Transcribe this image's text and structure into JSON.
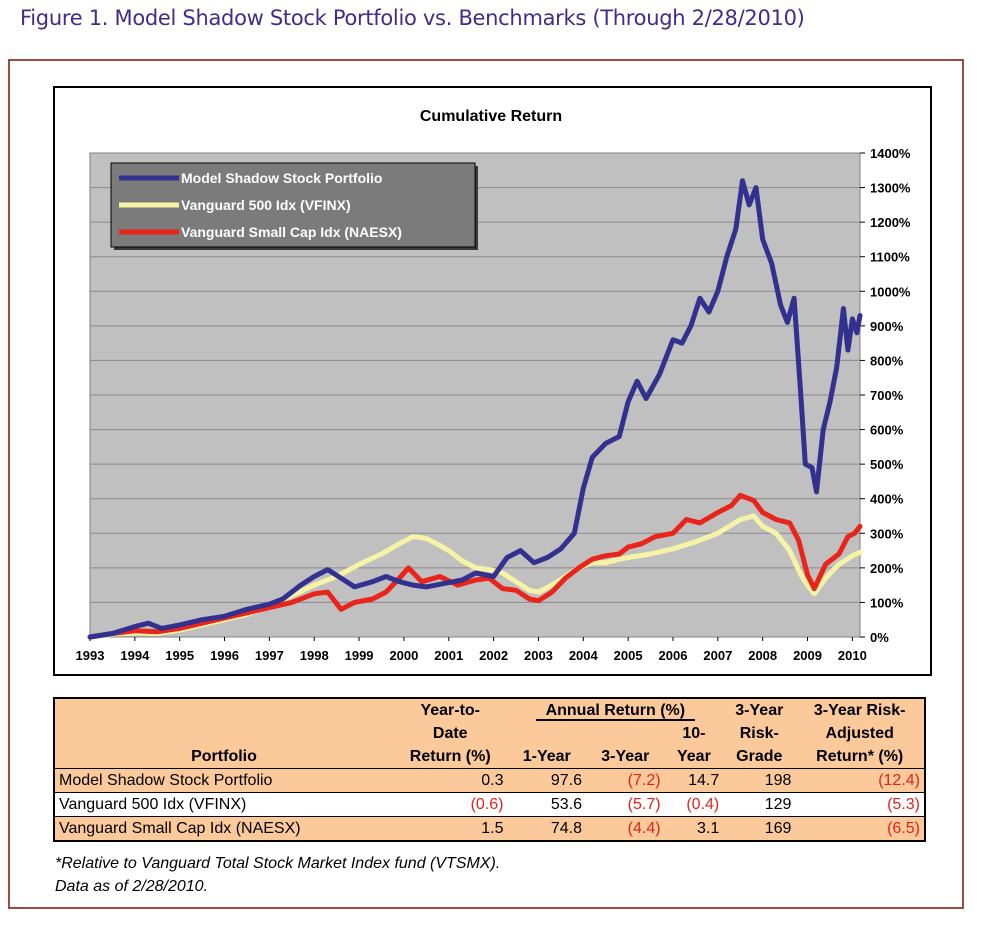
{
  "figure_title": "Figure 1. Model Shadow Stock Portfolio vs. Benchmarks (Through 2/28/2010)",
  "chart_data": {
    "type": "line",
    "title": "Cumulative Return",
    "xlabel": "",
    "ylabel": "",
    "xlim": [
      1993.0,
      2010.17
    ],
    "ylim": [
      0,
      1400
    ],
    "y_tick_labels": [
      "0%",
      "100%",
      "200%",
      "300%",
      "400%",
      "500%",
      "600%",
      "700%",
      "800%",
      "900%",
      "1000%",
      "1100%",
      "1200%",
      "1300%",
      "1400%"
    ],
    "x_tick_labels": [
      "1993",
      "1994",
      "1995",
      "1996",
      "1997",
      "1998",
      "1999",
      "2000",
      "2001",
      "2002",
      "2003",
      "2004",
      "2005",
      "2006",
      "2007",
      "2008",
      "2009",
      "2010"
    ],
    "grid": true,
    "legend_position": "top-left",
    "background": "#c0c0c0",
    "series": [
      {
        "name": "Model Shadow Stock Portfolio",
        "color": "#33318f",
        "points": [
          [
            1993.0,
            0
          ],
          [
            1993.5,
            10
          ],
          [
            1994.0,
            30
          ],
          [
            1994.3,
            40
          ],
          [
            1994.6,
            25
          ],
          [
            1995.0,
            35
          ],
          [
            1995.5,
            50
          ],
          [
            1996.0,
            60
          ],
          [
            1996.5,
            80
          ],
          [
            1997.0,
            95
          ],
          [
            1997.3,
            110
          ],
          [
            1997.7,
            150
          ],
          [
            1998.0,
            175
          ],
          [
            1998.3,
            195
          ],
          [
            1998.6,
            170
          ],
          [
            1998.9,
            145
          ],
          [
            1999.3,
            160
          ],
          [
            1999.6,
            175
          ],
          [
            1999.9,
            160
          ],
          [
            2000.2,
            150
          ],
          [
            2000.5,
            145
          ],
          [
            2000.9,
            155
          ],
          [
            2001.3,
            165
          ],
          [
            2001.6,
            185
          ],
          [
            2002.0,
            175
          ],
          [
            2002.3,
            230
          ],
          [
            2002.6,
            250
          ],
          [
            2002.9,
            215
          ],
          [
            2003.2,
            230
          ],
          [
            2003.5,
            255
          ],
          [
            2003.8,
            300
          ],
          [
            2004.0,
            430
          ],
          [
            2004.2,
            520
          ],
          [
            2004.5,
            560
          ],
          [
            2004.8,
            580
          ],
          [
            2005.0,
            680
          ],
          [
            2005.2,
            740
          ],
          [
            2005.4,
            690
          ],
          [
            2005.7,
            760
          ],
          [
            2006.0,
            860
          ],
          [
            2006.2,
            850
          ],
          [
            2006.4,
            900
          ],
          [
            2006.6,
            980
          ],
          [
            2006.8,
            940
          ],
          [
            2007.0,
            1000
          ],
          [
            2007.2,
            1100
          ],
          [
            2007.4,
            1180
          ],
          [
            2007.55,
            1320
          ],
          [
            2007.7,
            1250
          ],
          [
            2007.85,
            1300
          ],
          [
            2008.0,
            1150
          ],
          [
            2008.2,
            1080
          ],
          [
            2008.4,
            960
          ],
          [
            2008.55,
            910
          ],
          [
            2008.7,
            980
          ],
          [
            2008.85,
            700
          ],
          [
            2008.95,
            500
          ],
          [
            2009.1,
            490
          ],
          [
            2009.2,
            420
          ],
          [
            2009.35,
            600
          ],
          [
            2009.5,
            680
          ],
          [
            2009.65,
            780
          ],
          [
            2009.8,
            950
          ],
          [
            2009.9,
            830
          ],
          [
            2010.0,
            920
          ],
          [
            2010.1,
            880
          ],
          [
            2010.17,
            930
          ]
        ]
      },
      {
        "name": "Vanguard 500 Idx (VFINX)",
        "color": "#f7f3a6",
        "points": [
          [
            1993.0,
            0
          ],
          [
            1993.5,
            8
          ],
          [
            1994.0,
            12
          ],
          [
            1994.5,
            10
          ],
          [
            1995.0,
            20
          ],
          [
            1995.5,
            35
          ],
          [
            1996.0,
            50
          ],
          [
            1996.5,
            65
          ],
          [
            1997.0,
            90
          ],
          [
            1997.5,
            120
          ],
          [
            1998.0,
            150
          ],
          [
            1998.5,
            175
          ],
          [
            1999.0,
            210
          ],
          [
            1999.5,
            240
          ],
          [
            1999.9,
            270
          ],
          [
            2000.2,
            290
          ],
          [
            2000.5,
            285
          ],
          [
            2000.8,
            265
          ],
          [
            2001.0,
            250
          ],
          [
            2001.3,
            220
          ],
          [
            2001.6,
            200
          ],
          [
            2001.9,
            195
          ],
          [
            2002.2,
            185
          ],
          [
            2002.5,
            160
          ],
          [
            2002.8,
            135
          ],
          [
            2003.0,
            130
          ],
          [
            2003.3,
            150
          ],
          [
            2003.6,
            175
          ],
          [
            2003.9,
            200
          ],
          [
            2004.2,
            215
          ],
          [
            2004.5,
            215
          ],
          [
            2004.8,
            225
          ],
          [
            2005.0,
            230
          ],
          [
            2005.5,
            240
          ],
          [
            2006.0,
            255
          ],
          [
            2006.5,
            275
          ],
          [
            2007.0,
            300
          ],
          [
            2007.5,
            340
          ],
          [
            2007.8,
            350
          ],
          [
            2008.0,
            320
          ],
          [
            2008.3,
            300
          ],
          [
            2008.6,
            250
          ],
          [
            2008.85,
            180
          ],
          [
            2009.0,
            150
          ],
          [
            2009.15,
            125
          ],
          [
            2009.4,
            170
          ],
          [
            2009.7,
            210
          ],
          [
            2010.0,
            235
          ],
          [
            2010.17,
            245
          ]
        ]
      },
      {
        "name": "Vanguard Small Cap Idx (NAESX)",
        "color": "#e8241b",
        "points": [
          [
            1993.0,
            0
          ],
          [
            1993.5,
            10
          ],
          [
            1994.0,
            18
          ],
          [
            1994.5,
            15
          ],
          [
            1995.0,
            25
          ],
          [
            1995.5,
            40
          ],
          [
            1996.0,
            55
          ],
          [
            1996.5,
            70
          ],
          [
            1997.0,
            85
          ],
          [
            1997.5,
            100
          ],
          [
            1998.0,
            125
          ],
          [
            1998.3,
            130
          ],
          [
            1998.6,
            80
          ],
          [
            1998.9,
            100
          ],
          [
            1999.3,
            110
          ],
          [
            1999.6,
            130
          ],
          [
            1999.9,
            170
          ],
          [
            2000.1,
            200
          ],
          [
            2000.4,
            160
          ],
          [
            2000.8,
            175
          ],
          [
            2001.2,
            150
          ],
          [
            2001.6,
            165
          ],
          [
            2001.9,
            170
          ],
          [
            2002.2,
            140
          ],
          [
            2002.5,
            135
          ],
          [
            2002.8,
            110
          ],
          [
            2003.0,
            105
          ],
          [
            2003.3,
            130
          ],
          [
            2003.6,
            170
          ],
          [
            2003.9,
            200
          ],
          [
            2004.2,
            225
          ],
          [
            2004.5,
            235
          ],
          [
            2004.8,
            240
          ],
          [
            2005.0,
            260
          ],
          [
            2005.3,
            270
          ],
          [
            2005.6,
            290
          ],
          [
            2006.0,
            300
          ],
          [
            2006.3,
            340
          ],
          [
            2006.6,
            330
          ],
          [
            2007.0,
            360
          ],
          [
            2007.3,
            380
          ],
          [
            2007.5,
            410
          ],
          [
            2007.8,
            395
          ],
          [
            2008.0,
            360
          ],
          [
            2008.3,
            340
          ],
          [
            2008.6,
            330
          ],
          [
            2008.8,
            280
          ],
          [
            2009.0,
            180
          ],
          [
            2009.15,
            140
          ],
          [
            2009.4,
            210
          ],
          [
            2009.7,
            240
          ],
          [
            2009.9,
            290
          ],
          [
            2010.05,
            300
          ],
          [
            2010.17,
            320
          ]
        ]
      }
    ]
  },
  "table": {
    "headers": {
      "portfolio": "Portfolio",
      "ytd_l1": "Year-to-",
      "ytd_l2": "Date",
      "ytd_l3": "Return (%)",
      "annual_group": "Annual Return (%)",
      "one_year": "1-Year",
      "three_year": "3-Year",
      "ten_l1": "10-",
      "ten_l2": "Year",
      "grade_l1": "3-Year",
      "grade_l2": "Risk-",
      "grade_l3": "Grade",
      "adj_l1": "3-Year Risk-",
      "adj_l2": "Adjusted",
      "adj_l3": "Return* (%)"
    },
    "rows": [
      {
        "name": "Model Shadow Stock Portfolio",
        "ytd": "0.3",
        "one_year": "97.6",
        "three_year": "(7.2)",
        "ten_year": "14.7",
        "risk_grade": "198",
        "risk_adj": "(12.4)"
      },
      {
        "name": "Vanguard 500 Idx (VFINX)",
        "ytd": "(0.6)",
        "one_year": "53.6",
        "three_year": "(5.7)",
        "ten_year": "(0.4)",
        "risk_grade": "129",
        "risk_adj": "(5.3)"
      },
      {
        "name": "Vanguard Small Cap Idx (NAESX)",
        "ytd": "1.5",
        "one_year": "74.8",
        "three_year": "(4.4)",
        "ten_year": "3.1",
        "risk_grade": "169",
        "risk_adj": "(6.5)"
      }
    ]
  },
  "footnotes": {
    "note": "*Relative to Vanguard Total Stock Market Index fund (VTSMX).",
    "asof": "Data as of 2/28/2010."
  }
}
